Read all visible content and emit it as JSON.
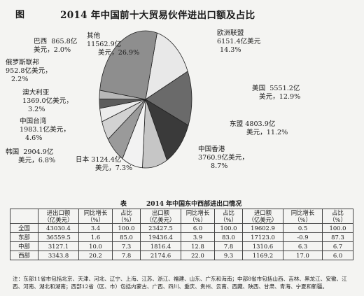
{
  "figure": {
    "label": "图",
    "title": "2014 年中国前十大贸易伙伴进出口额及占比"
  },
  "chart_data": {
    "type": "pie",
    "title": "2014 年中国前十大贸易伙伴进出口额及占比",
    "unit": "亿美元",
    "slices": [
      {
        "name": "欧洲联盟",
        "value": 6151.4,
        "percent": 14.3,
        "value_text": "6151.4亿美元",
        "percent_text": "14.3%",
        "color": "#e8e8e8"
      },
      {
        "name": "美国",
        "value": 5551.2,
        "percent": 12.9,
        "value_text": "5551.2亿",
        "percent_text": "美元，12.9%",
        "color": "#6a6a6a"
      },
      {
        "name": "东盟",
        "value": 4803.9,
        "percent": 11.2,
        "value_text": "4803.9亿",
        "percent_text": "美元，11.2%",
        "color": "#3a3a3a"
      },
      {
        "name": "中国香港",
        "value": 3760.9,
        "percent": 8.7,
        "value_text": "3760.9亿美元，",
        "percent_text": "8.7%",
        "color": "#c6c6c6"
      },
      {
        "name": "日本",
        "value": 3124.4,
        "percent": 7.3,
        "value_text": "3124.4亿",
        "percent_text": "美元，7.3%",
        "color": "#f2f2f2"
      },
      {
        "name": "韩国",
        "value": 2904.9,
        "percent": 6.8,
        "value_text": "2904.9亿",
        "percent_text": "美元，6.8%",
        "color": "#9a9a9a"
      },
      {
        "name": "中国台湾",
        "value": 1983.1,
        "percent": 4.6,
        "value_text": "1983.1亿美元，",
        "percent_text": "4.6%",
        "color": "#d2d2d2"
      },
      {
        "name": "澳大利亚",
        "value": 1369.0,
        "percent": 3.2,
        "value_text": "1369.0亿美元，",
        "percent_text": "3.2%",
        "color": "#ececec"
      },
      {
        "name": "俄罗斯联邦",
        "value": 952.8,
        "percent": 2.2,
        "value_text": "952.8亿美元，",
        "percent_text": "2.2%",
        "color": "#5c5c5c"
      },
      {
        "name": "巴西",
        "value": 865.8,
        "percent": 2.0,
        "value_text": "865.8亿",
        "percent_text": "美元，2.0%",
        "color": "#b8b8b8"
      },
      {
        "name": "其他",
        "value": 11562.9,
        "percent": 26.9,
        "value_text": "11562.9亿",
        "percent_text": "美元，26.9%",
        "color": "#8e8e8e"
      }
    ]
  },
  "table": {
    "label": "表",
    "title": "2014 年中国东中西部进出口情况",
    "group_headers": [
      "进出口额",
      "出口额",
      "进口额"
    ],
    "unit_label": "（亿美元）",
    "col_growth": "同比增长",
    "col_share": "占比",
    "pct_unit": "（%）",
    "rows": [
      {
        "region": "全国",
        "values": [
          "43030.4",
          "3.4",
          "100.0",
          "23427.5",
          "6.0",
          "100.0",
          "19602.9",
          "0.5",
          "100.0"
        ]
      },
      {
        "region": "东部",
        "values": [
          "36559.5",
          "1.6",
          "85.0",
          "19436.4",
          "3.9",
          "83.0",
          "17123.0",
          "-0.9",
          "87.3"
        ]
      },
      {
        "region": "中部",
        "values": [
          "3127.1",
          "10.0",
          "7.3",
          "1816.4",
          "12.8",
          "7.8",
          "1310.6",
          "6.3",
          "6.7"
        ]
      },
      {
        "region": "西部",
        "values": [
          "3343.8",
          "20.2",
          "7.8",
          "2174.6",
          "22.0",
          "9.3",
          "1169.2",
          "17.0",
          "6.0"
        ]
      }
    ]
  },
  "footnote": "注：东部11省市包括北京、天津、河北、辽宁、上海、江苏、浙江、福建、山东、广东和海南；中部8省市包括山西、吉林、黑龙江、安徽、江西、河南、湖北和湖南；西部12省（区、市）包括内蒙古、广西、四川、重庆、贵州、云南、西藏、陕西、甘肃、青海、宁夏和新疆。"
}
